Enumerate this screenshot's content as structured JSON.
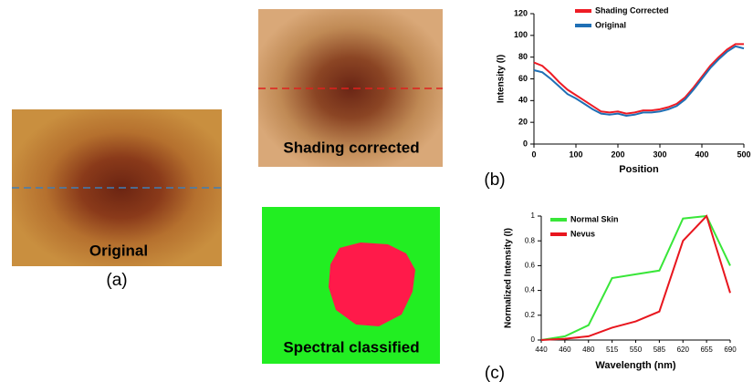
{
  "panels": {
    "a": {
      "label": "(a)",
      "caption": "Original"
    },
    "shading": {
      "caption": "Shading corrected"
    },
    "classified": {
      "caption": "Spectral classified"
    },
    "b": {
      "label": "(b)"
    },
    "c": {
      "label": "(c)"
    }
  },
  "chart_data": [
    {
      "type": "line",
      "x_label": "Position",
      "y_label": "Intensity (I)",
      "x": [
        0,
        20,
        40,
        60,
        80,
        100,
        120,
        140,
        160,
        180,
        200,
        220,
        240,
        260,
        280,
        300,
        320,
        340,
        360,
        380,
        400,
        420,
        440,
        460,
        480,
        500
      ],
      "series": [
        {
          "name": "Shading Corrected",
          "color": "#ee1c25",
          "values": [
            75,
            72,
            65,
            57,
            50,
            45,
            40,
            35,
            30,
            29,
            30,
            28,
            29,
            31,
            31,
            32,
            34,
            37,
            43,
            52,
            62,
            72,
            80,
            87,
            92,
            92
          ]
        },
        {
          "name": "Original",
          "color": "#1f6fb5",
          "values": [
            68,
            66,
            60,
            53,
            46,
            42,
            37,
            32,
            28,
            27,
            28,
            26,
            27,
            29,
            29,
            30,
            32,
            35,
            41,
            50,
            60,
            70,
            78,
            85,
            90,
            88
          ]
        }
      ],
      "xlim": [
        0,
        500
      ],
      "xticks": [
        0,
        100,
        200,
        300,
        400,
        500
      ],
      "ylim": [
        0,
        120
      ],
      "yticks": [
        0,
        20,
        40,
        60,
        80,
        100,
        120
      ]
    },
    {
      "type": "line",
      "x_label": "Wavelength (nm)",
      "y_label": "Normalized Intensity (I)",
      "categories": [
        "440",
        "460",
        "480",
        "515",
        "550",
        "585",
        "620",
        "655",
        "690"
      ],
      "series": [
        {
          "name": "Normal Skin",
          "color": "#39e639",
          "values": [
            0,
            0.03,
            0.12,
            0.5,
            0.53,
            0.56,
            0.98,
            1.0,
            0.6
          ]
        },
        {
          "name": "Nevus",
          "color": "#e8161e",
          "values": [
            0,
            0.01,
            0.03,
            0.1,
            0.15,
            0.23,
            0.8,
            1.0,
            0.38
          ]
        }
      ],
      "ylim": [
        0,
        1
      ],
      "yticks": [
        0,
        0.2,
        0.4,
        0.6,
        0.8,
        1
      ]
    }
  ]
}
